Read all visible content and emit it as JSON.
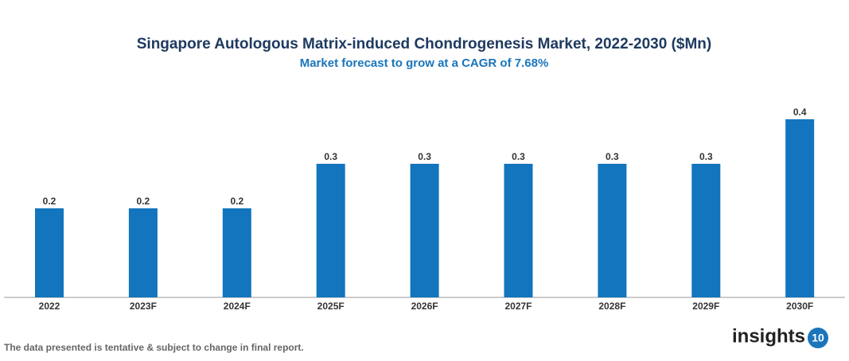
{
  "chart_data": {
    "type": "bar",
    "title": "Singapore Autologous Matrix-induced Chondrogenesis Market, 2022-2030 ($Mn)",
    "subtitle": "Market forecast to grow at a CAGR of 7.68%",
    "categories": [
      "2022",
      "2023F",
      "2024F",
      "2025F",
      "2026F",
      "2027F",
      "2028F",
      "2029F",
      "2030F"
    ],
    "values": [
      0.2,
      0.2,
      0.2,
      0.3,
      0.3,
      0.3,
      0.3,
      0.3,
      0.4
    ],
    "color": "#1275bd"
  },
  "footnote": "The data presented is tentative & subject to change in final report.",
  "logo": {
    "text": "insights",
    "badge": "10"
  }
}
